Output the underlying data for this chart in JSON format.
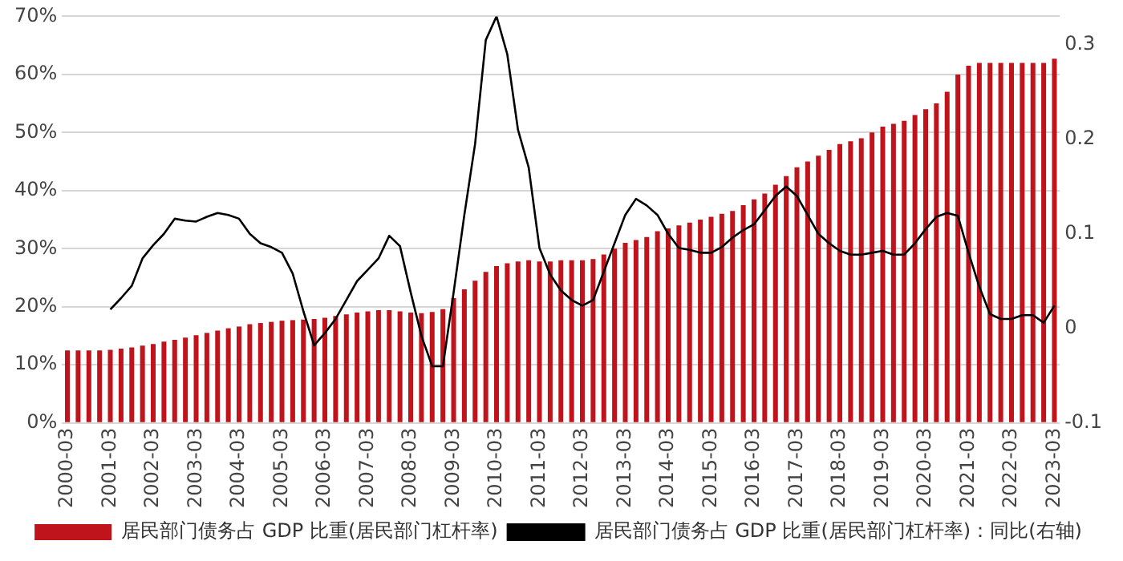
{
  "chart_data": {
    "type": "bar",
    "categories": [
      "2000-03",
      null,
      null,
      null,
      "2001-03",
      null,
      null,
      null,
      "2002-03",
      null,
      null,
      null,
      "2003-03",
      null,
      null,
      null,
      "2004-03",
      null,
      null,
      null,
      "2005-03",
      null,
      null,
      null,
      "2006-03",
      null,
      null,
      null,
      "2007-03",
      null,
      null,
      null,
      "2008-03",
      null,
      null,
      null,
      "2009-03",
      null,
      null,
      null,
      "2010-03",
      null,
      null,
      null,
      "2011-03",
      null,
      null,
      null,
      "2012-03",
      null,
      null,
      null,
      "2013-03",
      null,
      null,
      null,
      "2014-03",
      null,
      null,
      null,
      "2015-03",
      null,
      null,
      null,
      "2016-03",
      null,
      null,
      null,
      "2017-03",
      null,
      null,
      null,
      "2018-03",
      null,
      null,
      null,
      "2019-03",
      null,
      null,
      null,
      "2020-03",
      null,
      null,
      null,
      "2021-03",
      null,
      null,
      null,
      "2022-03",
      null,
      null,
      null,
      "2023-03"
    ],
    "series": [
      {
        "name": "居民部门债务占 GDP 比重(居民部门杠杆率)",
        "color": "#c0141c",
        "values": [
          12.5,
          12.5,
          12.5,
          12.5,
          12.6,
          12.8,
          13,
          13.3,
          13.6,
          14,
          14.3,
          14.7,
          15.1,
          15.5,
          15.9,
          16.3,
          16.6,
          17,
          17.2,
          17.4,
          17.6,
          17.7,
          17.8,
          17.9,
          18.1,
          18.4,
          18.7,
          19,
          19.2,
          19.4,
          19.4,
          19.2,
          19,
          18.9,
          19.1,
          19.6,
          21.5,
          23,
          24.5,
          26,
          27,
          27.5,
          27.8,
          28,
          27.8,
          27.8,
          28,
          28,
          28,
          28.2,
          29,
          30,
          31,
          31.5,
          32,
          33,
          33.5,
          34,
          34.5,
          35,
          35.5,
          36,
          36.5,
          37.5,
          38.5,
          39.5,
          41,
          42.5,
          44,
          45,
          46,
          47,
          48,
          48.5,
          49,
          50,
          51,
          51.5,
          52,
          53,
          54,
          55,
          57,
          60,
          61.5,
          62,
          62,
          62,
          62,
          62,
          62,
          62,
          62.7
        ]
      },
      {
        "name": "居民部门债务占 GDP 比重(居民部门杠杆率)：同比(右轴)",
        "type": "line",
        "axis": "y2",
        "color": "#000000",
        "values": [
          null,
          null,
          null,
          null,
          0.02,
          0.032,
          0.045,
          0.074,
          0.088,
          0.1,
          0.116,
          0.114,
          0.113,
          0.118,
          0.122,
          0.12,
          0.116,
          0.1,
          0.09,
          0.086,
          0.08,
          0.058,
          0.018,
          -0.018,
          -0.005,
          0.01,
          0.03,
          0.05,
          0.062,
          0.074,
          0.098,
          0.087,
          0.038,
          -0.008,
          -0.04,
          -0.04,
          0.038,
          0.12,
          0.195,
          0.305,
          0.33,
          0.29,
          0.21,
          0.17,
          0.085,
          0.057,
          0.04,
          0.03,
          0.024,
          0.03,
          0.06,
          0.09,
          0.12,
          0.137,
          0.13,
          0.12,
          0.1,
          0.085,
          0.083,
          0.08,
          0.08,
          0.086,
          0.096,
          0.104,
          0.11,
          0.125,
          0.14,
          0.15,
          0.14,
          0.12,
          0.1,
          0.09,
          0.082,
          0.078,
          0.078,
          0.08,
          0.082,
          0.078,
          0.078,
          0.09,
          0.105,
          0.118,
          0.122,
          0.119,
          0.08,
          0.044,
          0.015,
          0.01,
          0.01,
          0.014,
          0.014,
          0.006,
          0.024
        ]
      }
    ],
    "ylim": [
      0,
      70
    ],
    "yticks": [
      {
        "value": 0,
        "label": "0%"
      },
      {
        "value": 10,
        "label": "10%"
      },
      {
        "value": 20,
        "label": "20%"
      },
      {
        "value": 30,
        "label": "30%"
      },
      {
        "value": 40,
        "label": "40%"
      },
      {
        "value": 50,
        "label": "50%"
      },
      {
        "value": 60,
        "label": "60%"
      },
      {
        "value": 70,
        "label": "70%"
      }
    ],
    "y2lim": [
      -0.1,
      0.33
    ],
    "y2ticks": [
      -0.1,
      0,
      0.1,
      0.2,
      0.3
    ],
    "grid": "y",
    "legend": "bottom",
    "marker": "none",
    "line_style": "solid"
  }
}
